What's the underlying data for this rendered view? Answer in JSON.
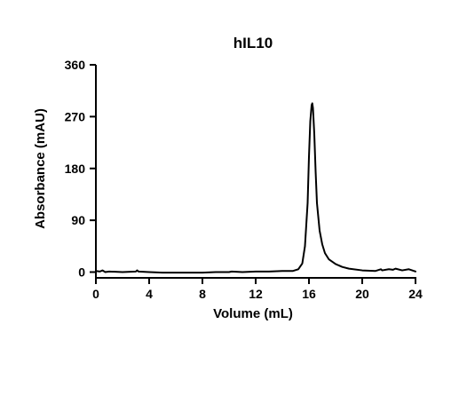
{
  "chart_data": {
    "type": "line",
    "title": "hIL10",
    "xlabel": "Volume (mL)",
    "ylabel": "Absorbance (mAU)",
    "xlim": [
      0,
      24
    ],
    "ylim": [
      -10,
      360
    ],
    "xticks": [
      0,
      4,
      8,
      12,
      16,
      20,
      24
    ],
    "yticks": [
      0,
      90,
      180,
      270,
      360
    ],
    "grid": false,
    "series": [
      {
        "color": "#000000",
        "x": [
          0.0,
          0.3,
          0.5,
          0.7,
          1.0,
          2.0,
          3.0,
          3.1,
          3.2,
          4.0,
          5.0,
          6.0,
          7.0,
          8.0,
          9.0,
          10.0,
          10.2,
          11.0,
          12.0,
          13.0,
          14.0,
          14.8,
          15.2,
          15.5,
          15.7,
          15.9,
          16.0,
          16.1,
          16.2,
          16.25,
          16.3,
          16.4,
          16.5,
          16.6,
          16.8,
          17.0,
          17.2,
          17.5,
          18.0,
          18.5,
          19.0,
          20.0,
          21.0,
          21.4,
          21.5,
          22.0,
          22.3,
          22.5,
          23.0,
          23.5,
          24.0
        ],
        "y": [
          2,
          1,
          3,
          0,
          1,
          0,
          1,
          3,
          1,
          0,
          -1,
          -1,
          -1,
          -1,
          0,
          0,
          1,
          0,
          1,
          1,
          2,
          2,
          5,
          15,
          45,
          120,
          200,
          262,
          290,
          293,
          285,
          240,
          175,
          120,
          72,
          48,
          33,
          22,
          14,
          9,
          6,
          3,
          2,
          5,
          3,
          5,
          4,
          6,
          3,
          5,
          1
        ]
      }
    ]
  }
}
